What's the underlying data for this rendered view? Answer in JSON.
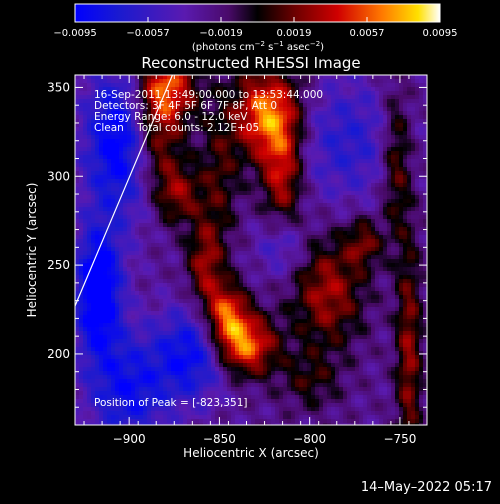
{
  "chart_data": {
    "type": "heatmap",
    "title": "Reconstructed RHESSI Image",
    "xlabel": "Heliocentric X (arcsec)",
    "ylabel": "Heliocentric Y (arcsec)",
    "xlim": [
      -930,
      -735
    ],
    "ylim": [
      160,
      357
    ],
    "x_ticks": [
      {
        "value": -900,
        "label": "−900"
      },
      {
        "value": -850,
        "label": "−850"
      },
      {
        "value": -800,
        "label": "−800"
      },
      {
        "value": -750,
        "label": "−750"
      }
    ],
    "y_ticks": [
      {
        "value": 200,
        "label": "200"
      },
      {
        "value": 250,
        "label": "250"
      },
      {
        "value": 300,
        "label": "300"
      },
      {
        "value": 350,
        "label": "350"
      }
    ],
    "colorbar": {
      "range": [
        -0.0095,
        0.0095
      ],
      "ticks": [
        {
          "value": -0.0095,
          "label": "−0.0095"
        },
        {
          "value": -0.0057,
          "label": "−0.0057"
        },
        {
          "value": -0.0019,
          "label": "−0.0019"
        },
        {
          "value": 0.0019,
          "label": "0.0019"
        },
        {
          "value": 0.0057,
          "label": "0.0057"
        },
        {
          "value": 0.0095,
          "label": "0.0095"
        }
      ],
      "units_label": {
        "prefix": "(photons cm",
        "exp1": "−2",
        "mid1": " s",
        "exp2": "−1",
        "mid2": " asec",
        "exp3": "−2",
        "suffix": ")"
      }
    },
    "annotations": [
      "16-Sep-2011 13:49:00.000 to 13:53:44.000",
      "Detectors: 3F 4F 5F 6F 7F 8F, Att 0",
      "Energy Range: 6.0 - 12.0 keV",
      "Clean    Total counts: 2.12E+05"
    ],
    "peak_label": "Position of Peak = [-823,351]",
    "peak_position": [
      -823,
      351
    ],
    "limb_line": {
      "x": [
        -930,
        -876
      ],
      "y": [
        227,
        357
      ]
    },
    "features": [
      {
        "x": -880,
        "y": 350,
        "sx": 12,
        "sy": 14,
        "a": 0.85
      },
      {
        "x": -885,
        "y": 320,
        "sx": 10,
        "sy": 20,
        "a": 0.6
      },
      {
        "x": -873,
        "y": 290,
        "sx": 9,
        "sy": 12,
        "a": 0.5
      },
      {
        "x": -850,
        "y": 300,
        "sx": 8,
        "sy": 28,
        "a": 0.35
      },
      {
        "x": -858,
        "y": 250,
        "sx": 7,
        "sy": 18,
        "a": 0.55
      },
      {
        "x": -846,
        "y": 223,
        "sx": 8,
        "sy": 12,
        "a": 0.8
      },
      {
        "x": -823,
        "y": 335,
        "sx": 13,
        "sy": 18,
        "a": 1.0
      },
      {
        "x": -815,
        "y": 300,
        "sx": 8,
        "sy": 20,
        "a": 0.65
      },
      {
        "x": -836,
        "y": 205,
        "sx": 12,
        "sy": 12,
        "a": 0.95
      },
      {
        "x": -790,
        "y": 235,
        "sx": 14,
        "sy": 22,
        "a": 0.6
      },
      {
        "x": -770,
        "y": 263,
        "sx": 7,
        "sy": 10,
        "a": 0.45
      },
      {
        "x": -752,
        "y": 310,
        "sx": 6,
        "sy": 30,
        "a": 0.5
      },
      {
        "x": -745,
        "y": 200,
        "sx": 5,
        "sy": 45,
        "a": 0.55
      },
      {
        "x": -800,
        "y": 185,
        "sx": 12,
        "sy": 12,
        "a": 0.3
      },
      {
        "x": -917,
        "y": 235,
        "sx": 9,
        "sy": 25,
        "a": -0.95
      },
      {
        "x": -905,
        "y": 320,
        "sx": 14,
        "sy": 30,
        "a": -0.8
      },
      {
        "x": -865,
        "y": 200,
        "sx": 14,
        "sy": 18,
        "a": -0.65
      },
      {
        "x": -900,
        "y": 180,
        "sx": 16,
        "sy": 22,
        "a": -0.6
      },
      {
        "x": -780,
        "y": 320,
        "sx": 22,
        "sy": 25,
        "a": -0.4
      },
      {
        "x": -815,
        "y": 260,
        "sx": 10,
        "sy": 12,
        "a": -0.35
      }
    ]
  },
  "footer": {
    "timestamp": "14–May–2022 05:17"
  }
}
